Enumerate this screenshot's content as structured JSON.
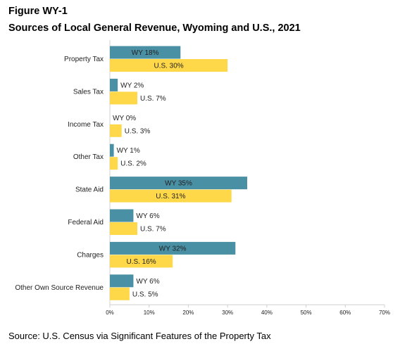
{
  "figure_label": "Figure WY-1",
  "source": "Source: U.S. Census via Significant Features of the Property Tax",
  "colors": {
    "wy": "#4a90a4",
    "us": "#ffd84a",
    "axis": "#d0d0d0"
  },
  "chart_data": {
    "type": "bar",
    "orientation": "horizontal",
    "title": "Sources of Local General Revenue, Wyoming and U.S., 2021",
    "categories": [
      "Property Tax",
      "Sales Tax",
      "Income Tax",
      "Other Tax",
      "State Aid",
      "Federal Aid",
      "Charges",
      "Other Own Source Revenue"
    ],
    "series": [
      {
        "key": "wy",
        "values": [
          18,
          2,
          0,
          1,
          35,
          6,
          32,
          6
        ],
        "labels": [
          "WY 18%",
          "WY 2%",
          "WY 0%",
          "WY 1%",
          "WY 35%",
          "WY 6%",
          "WY 32%",
          "WY 6%"
        ]
      },
      {
        "key": "us",
        "values": [
          30,
          7,
          3,
          2,
          31,
          7,
          16,
          5
        ],
        "labels": [
          "U.S. 30%",
          "U.S. 7%",
          "U.S. 3%",
          "U.S. 2%",
          "U.S. 31%",
          "U.S. 7%",
          "U.S. 16%",
          "U.S. 5%"
        ]
      }
    ],
    "xlim": [
      0,
      70
    ],
    "xticks": [
      0,
      10,
      20,
      30,
      40,
      50,
      60,
      70
    ],
    "xtick_labels": [
      "0%",
      "10%",
      "20%",
      "30%",
      "40%",
      "50%",
      "60%",
      "70%"
    ],
    "grid": false,
    "legend": "none"
  }
}
